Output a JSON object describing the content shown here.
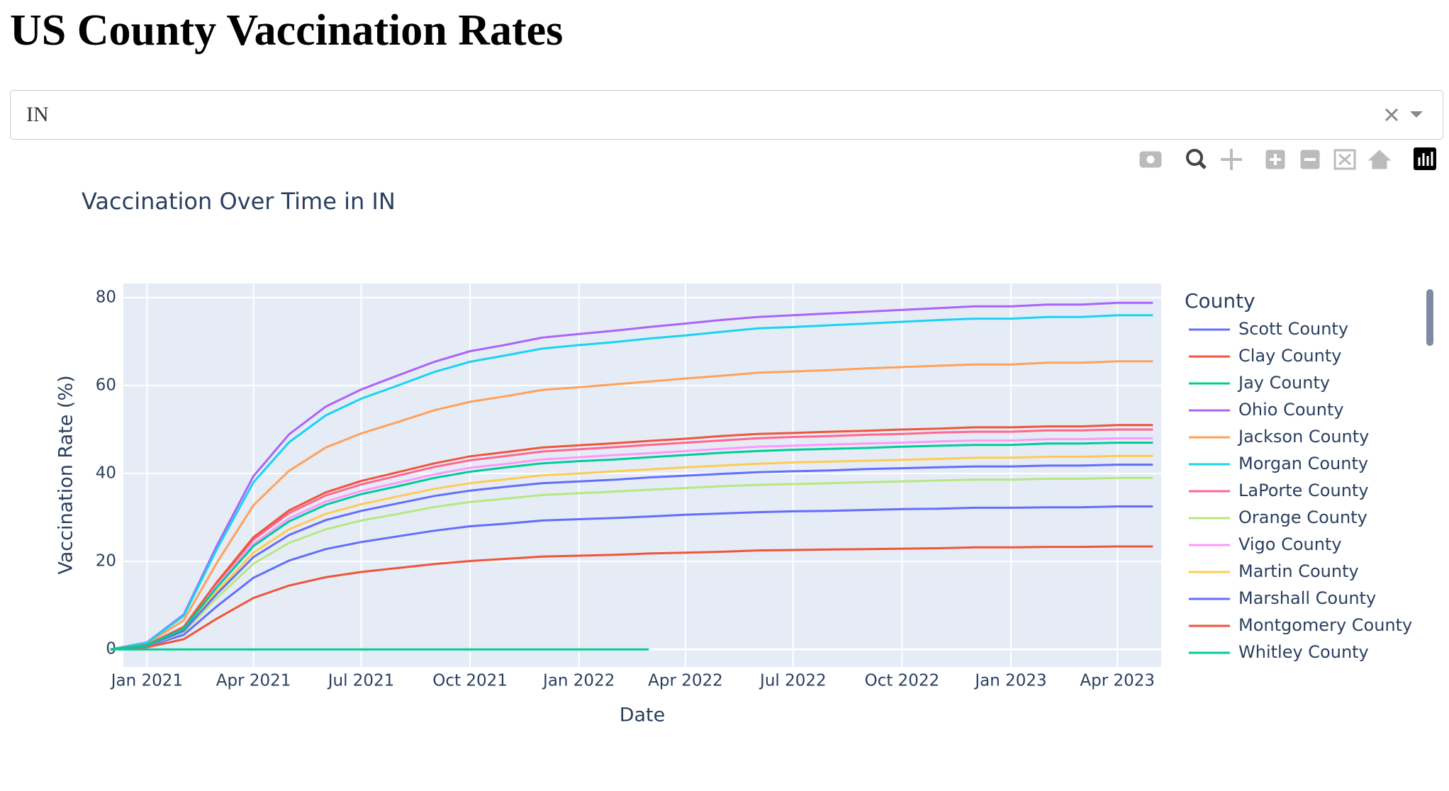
{
  "header": {
    "title": "US County Vaccination Rates"
  },
  "dropdown": {
    "value": "IN"
  },
  "chart_data": {
    "type": "line",
    "title": "Vaccination Over Time in IN",
    "x_label": "Date",
    "y_label": "Vaccination Rate (%)",
    "legend_title": "County",
    "legend": "right",
    "grid": true,
    "x": [
      "2020-12",
      "2021-01",
      "2021-02",
      "2021-03",
      "2021-04",
      "2021-05",
      "2021-06",
      "2021-07",
      "2021-08",
      "2021-09",
      "2021-10",
      "2021-11",
      "2021-12",
      "2022-01",
      "2022-02",
      "2022-03",
      "2022-04",
      "2022-05",
      "2022-06",
      "2022-07",
      "2022-08",
      "2022-09",
      "2022-10",
      "2022-11",
      "2022-12",
      "2023-01",
      "2023-02",
      "2023-03",
      "2023-04",
      "2023-05"
    ],
    "xlim": [
      "2020-12-12",
      "2023-05-08"
    ],
    "xticks": [
      {
        "value": "2021-01",
        "label": "Jan 2021"
      },
      {
        "value": "2021-04",
        "label": "Apr 2021"
      },
      {
        "value": "2021-07",
        "label": "Jul 2021"
      },
      {
        "value": "2021-10",
        "label": "Oct 2021"
      },
      {
        "value": "2022-01",
        "label": "Jan 2022"
      },
      {
        "value": "2022-04",
        "label": "Apr 2022"
      },
      {
        "value": "2022-07",
        "label": "Jul 2022"
      },
      {
        "value": "2022-10",
        "label": "Oct 2022"
      },
      {
        "value": "2023-01",
        "label": "Jan 2023"
      },
      {
        "value": "2023-04",
        "label": "Apr 2023"
      }
    ],
    "ylim": [
      -4,
      83.2
    ],
    "yticks": [
      0,
      20,
      40,
      60,
      80
    ],
    "series": [
      {
        "name": "Scott County",
        "color": "#636efa",
        "values": [
          0,
          0.7,
          3.3,
          9.8,
          16.3,
          20.2,
          22.8,
          24.4,
          25.7,
          27,
          28,
          28.6,
          29.3,
          29.6,
          29.9,
          30.2,
          30.6,
          30.9,
          31.2,
          31.4,
          31.5,
          31.7,
          31.9,
          32,
          32.2,
          32.2,
          32.3,
          32.3,
          32.5,
          32.5
        ]
      },
      {
        "name": "Clay County",
        "color": "#ef553b",
        "values": [
          0,
          0.5,
          2.3,
          7,
          11.7,
          14.5,
          16.4,
          17.6,
          18.5,
          19.4,
          20.1,
          20.6,
          21.1,
          21.3,
          21.5,
          21.8,
          22,
          22.2,
          22.5,
          22.6,
          22.7,
          22.8,
          22.9,
          23,
          23.2,
          23.2,
          23.3,
          23.3,
          23.4,
          23.4
        ]
      },
      {
        "name": "Jay County",
        "color": "#00cc96",
        "values": [
          0,
          0,
          0,
          0,
          0,
          0,
          0,
          0,
          0,
          0,
          0,
          0,
          0,
          0,
          0,
          0,
          null,
          null,
          null,
          null,
          null,
          null,
          null,
          null,
          null,
          null,
          null,
          null,
          null,
          null
        ]
      },
      {
        "name": "Ohio County",
        "color": "#ab63fa",
        "values": [
          0,
          1.6,
          7.9,
          23.6,
          39.4,
          48.9,
          55.2,
          59.1,
          62.3,
          65.4,
          67.8,
          69.3,
          70.9,
          71.7,
          72.5,
          73.3,
          74.1,
          74.9,
          75.6,
          76,
          76.4,
          76.8,
          77.2,
          77.6,
          78,
          78,
          78.4,
          78.4,
          78.8,
          78.8
        ]
      },
      {
        "name": "Jackson County",
        "color": "#ffa15a",
        "values": [
          0,
          1.3,
          6.6,
          19.7,
          32.8,
          40.6,
          45.9,
          49.1,
          51.7,
          54.4,
          56.3,
          57.6,
          59,
          59.6,
          60.3,
          60.9,
          61.6,
          62.2,
          62.9,
          63.2,
          63.5,
          63.9,
          64.2,
          64.5,
          64.8,
          64.8,
          65.2,
          65.2,
          65.5,
          65.5
        ]
      },
      {
        "name": "Morgan County",
        "color": "#19d3f3",
        "values": [
          0,
          1.5,
          7.6,
          22.8,
          38,
          47.1,
          53.2,
          57,
          60,
          63.1,
          65.4,
          66.9,
          68.4,
          69.2,
          69.9,
          70.7,
          71.4,
          72.2,
          73,
          73.3,
          73.7,
          74.1,
          74.5,
          74.9,
          75.2,
          75.2,
          75.6,
          75.6,
          76,
          76
        ]
      },
      {
        "name": "LaPorte County",
        "color": "#ff6692",
        "values": [
          0,
          1,
          5,
          15,
          25,
          31,
          35,
          37.5,
          39.5,
          41.5,
          43,
          44,
          45,
          45.5,
          46,
          46.5,
          47,
          47.5,
          48,
          48.3,
          48.5,
          48.8,
          49,
          49.3,
          49.5,
          49.5,
          49.8,
          49.8,
          50,
          50
        ]
      },
      {
        "name": "Orange County",
        "color": "#b6e880",
        "values": [
          0,
          0.8,
          3.9,
          11.7,
          19.5,
          24.2,
          27.3,
          29.3,
          30.8,
          32.4,
          33.5,
          34.3,
          35.1,
          35.5,
          35.9,
          36.3,
          36.7,
          37.1,
          37.4,
          37.6,
          37.8,
          38,
          38.2,
          38.4,
          38.6,
          38.6,
          38.8,
          38.8,
          39,
          39
        ]
      },
      {
        "name": "Vigo County",
        "color": "#ff97ff",
        "values": [
          0,
          1,
          4.8,
          14.4,
          24,
          29.8,
          33.6,
          36,
          37.9,
          39.8,
          41.3,
          42.2,
          43.2,
          43.7,
          44.2,
          44.6,
          45.1,
          45.6,
          46.1,
          46.3,
          46.6,
          46.8,
          47,
          47.3,
          47.5,
          47.5,
          47.8,
          47.8,
          48,
          48
        ]
      },
      {
        "name": "Martin County",
        "color": "#fecb52",
        "values": [
          0,
          0.9,
          4.4,
          13.2,
          22,
          27.3,
          30.8,
          33,
          34.8,
          36.5,
          37.8,
          38.7,
          39.6,
          40,
          40.5,
          40.9,
          41.4,
          41.8,
          42.2,
          42.5,
          42.7,
          42.9,
          43.1,
          43.3,
          43.6,
          43.6,
          43.8,
          43.8,
          44,
          44
        ]
      },
      {
        "name": "Marshall County",
        "color": "#636efa",
        "values": [
          0,
          0.8,
          4.2,
          12.6,
          21,
          26,
          29.4,
          31.5,
          33.2,
          34.9,
          36.1,
          37,
          37.8,
          38.2,
          38.6,
          39.1,
          39.5,
          39.9,
          40.3,
          40.5,
          40.7,
          41,
          41.2,
          41.4,
          41.6,
          41.6,
          41.8,
          41.8,
          42,
          42
        ]
      },
      {
        "name": "Montgomery County",
        "color": "#ef553b",
        "values": [
          0,
          1,
          5.1,
          15.3,
          25.5,
          31.6,
          35.7,
          38.3,
          40.3,
          42.3,
          43.9,
          44.9,
          45.9,
          46.4,
          46.9,
          47.4,
          47.9,
          48.5,
          49,
          49.2,
          49.5,
          49.7,
          50,
          50.2,
          50.5,
          50.5,
          50.7,
          50.7,
          51,
          51
        ]
      },
      {
        "name": "Whitley County",
        "color": "#00cc96",
        "values": [
          0,
          0.9,
          4.7,
          14.1,
          23.5,
          29.1,
          32.9,
          35.3,
          37.1,
          39,
          40.4,
          41.4,
          42.3,
          42.8,
          43.2,
          43.7,
          44.2,
          44.7,
          45.1,
          45.4,
          45.6,
          45.8,
          46.1,
          46.3,
          46.5,
          46.5,
          46.8,
          46.8,
          47,
          47
        ]
      }
    ]
  }
}
